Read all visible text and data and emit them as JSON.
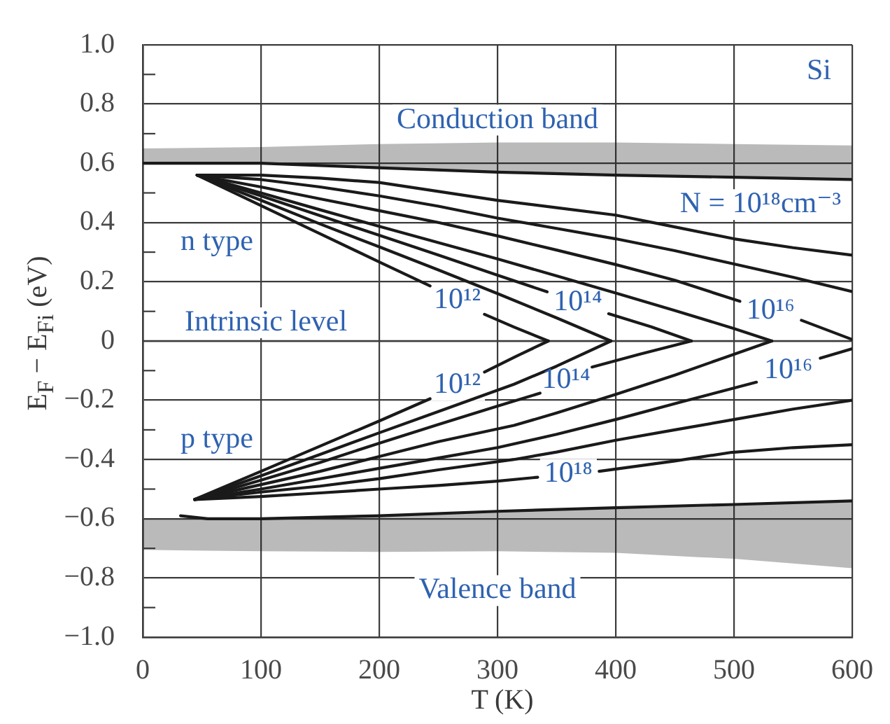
{
  "chart_data": {
    "type": "line",
    "title": "Si",
    "xlabel": "T (K)",
    "ylabel": "E$_{F}$ − E$_{Fi}$ (eV)",
    "xlim": [
      0,
      600
    ],
    "xticks": [
      0,
      100,
      200,
      300,
      400,
      500,
      600
    ],
    "ylim": [
      -1,
      1
    ],
    "yticks": [
      {
        "value": -1,
        "label": "−1.0"
      },
      {
        "value": -0.9,
        "label": null
      },
      {
        "value": -0.8,
        "label": "−0.8"
      },
      {
        "value": -0.7,
        "label": null
      },
      {
        "value": -0.6,
        "label": "−0.6"
      },
      {
        "value": -0.5,
        "label": null
      },
      {
        "value": -0.4,
        "label": "−0.4"
      },
      {
        "value": -0.3,
        "label": null
      },
      {
        "value": -0.2,
        "label": "−0.2"
      },
      {
        "value": -0.1,
        "label": null
      },
      0,
      {
        "value": 0.1,
        "label": null
      },
      0.2,
      {
        "value": 0.3,
        "label": null
      },
      0.4,
      {
        "value": 0.5,
        "label": null
      },
      0.6,
      {
        "value": 0.7,
        "label": null
      },
      0.8,
      {
        "value": 0.9,
        "label": null
      },
      {
        "value": 1,
        "label": "1.0"
      }
    ],
    "grid": true,
    "ref_lines": [
      {
        "axis": "y",
        "value": 0,
        "label": "Intrinsic level"
      }
    ],
    "series": [
      {
        "name": "Conduction band",
        "color": "#1a1a1a",
        "x": [
          0,
          100,
          200,
          300,
          400,
          500,
          600
        ],
        "values": [
          0.6,
          0.6,
          0.585,
          0.57,
          0.56,
          0.553,
          0.545
        ],
        "lower": [
          0.6,
          0.6,
          0.585,
          0.57,
          0.56,
          0.553,
          0.545
        ],
        "upper": [
          0.65,
          0.655,
          0.665,
          0.67,
          0.67,
          0.665,
          0.66
        ]
      },
      {
        "name": "Valence band",
        "color": "#1a1a1a",
        "x": [
          0,
          32,
          55,
          100,
          200,
          300,
          400,
          470,
          500,
          600
        ],
        "values": [
          null,
          -0.59,
          -0.6,
          -0.6,
          -0.59,
          -0.575,
          -0.563,
          -0.555,
          -0.552,
          -0.54
        ],
        "lower": [
          -0.705,
          -0.707,
          -0.708,
          -0.71,
          -0.712,
          -0.71,
          -0.715,
          -0.73,
          -0.735,
          -0.767
        ],
        "upper": [
          -0.6,
          -0.6,
          -0.6,
          -0.6,
          -0.59,
          -0.575,
          -0.563,
          -0.555,
          -0.552,
          -0.54
        ]
      },
      {
        "name": "10¹²",
        "color": "#1a1a1a",
        "x": [
          46,
          100,
          150,
          200,
          243,
          266,
          289,
          314,
          343
        ],
        "values": [
          0.56,
          0.457,
          0.362,
          0.267,
          0.186,
          null,
          0.09,
          0.047,
          0
        ]
      },
      {
        "color": "#1a1a1a",
        "x": [
          46,
          100,
          150,
          200,
          250,
          300,
          350,
          396
        ],
        "values": [
          0.56,
          0.475,
          0.395,
          0.318,
          0.24,
          0.16,
          0.078,
          0
        ]
      },
      {
        "name": "10¹⁴",
        "color": "#1a1a1a",
        "x": [
          46,
          100,
          150,
          200,
          250,
          300,
          342,
          363,
          394,
          430,
          464
        ],
        "values": [
          0.56,
          0.49,
          0.423,
          0.357,
          0.29,
          0.222,
          0.166,
          null,
          0.092,
          0.048,
          0
        ]
      },
      {
        "color": "#1a1a1a",
        "x": [
          46,
          100,
          150,
          200,
          250,
          300,
          350,
          400,
          450,
          500,
          532
        ],
        "values": [
          0.56,
          0.5,
          0.443,
          0.387,
          0.332,
          0.277,
          0.22,
          0.162,
          0.103,
          0.042,
          0
        ]
      },
      {
        "name": "10¹⁶",
        "color": "#1a1a1a",
        "x": [
          46,
          100,
          150,
          200,
          250,
          300,
          350,
          400,
          450,
          505,
          531,
          557,
          600
        ],
        "values": [
          0.56,
          0.52,
          0.48,
          0.44,
          0.4,
          0.355,
          0.307,
          0.258,
          0.205,
          0.134,
          null,
          0.07,
          0.005
        ]
      },
      {
        "color": "#1a1a1a",
        "x": [
          46,
          100,
          150,
          200,
          250,
          300,
          350,
          400,
          450,
          500,
          550,
          600
        ],
        "values": [
          0.56,
          0.545,
          0.52,
          0.49,
          0.455,
          0.415,
          0.38,
          0.345,
          0.305,
          0.26,
          0.215,
          0.167
        ]
      },
      {
        "name": "N = 10¹⁸cm⁻³",
        "color": "#1a1a1a",
        "x": [
          46,
          100,
          150,
          200,
          250,
          300,
          350,
          400,
          450,
          500,
          550,
          600
        ],
        "values": [
          0.56,
          0.56,
          0.55,
          0.535,
          0.505,
          0.475,
          0.45,
          0.425,
          0.385,
          0.345,
          0.315,
          0.29
        ]
      },
      {
        "name": "10¹²",
        "color": "#1a1a1a",
        "x": [
          44,
          100,
          150,
          200,
          243,
          266,
          289,
          314,
          343
        ],
        "values": [
          -0.535,
          -0.44,
          -0.355,
          -0.27,
          -0.195,
          null,
          -0.105,
          -0.055,
          0
        ]
      },
      {
        "color": "#1a1a1a",
        "x": [
          44,
          100,
          150,
          200,
          250,
          314,
          350,
          396
        ],
        "values": [
          -0.535,
          -0.455,
          -0.383,
          -0.31,
          -0.238,
          -0.146,
          -0.085,
          0
        ]
      },
      {
        "name": "10¹⁴",
        "color": "#1a1a1a",
        "x": [
          44,
          100,
          150,
          200,
          250,
          300,
          336,
          358,
          380,
          420,
          464
        ],
        "values": [
          -0.535,
          -0.47,
          -0.41,
          -0.345,
          -0.282,
          -0.22,
          -0.176,
          null,
          -0.088,
          -0.045,
          0
        ]
      },
      {
        "color": "#1a1a1a",
        "x": [
          44,
          100,
          150,
          200,
          250,
          314,
          350,
          400,
          450,
          500,
          532
        ],
        "values": [
          -0.535,
          -0.485,
          -0.44,
          -0.39,
          -0.34,
          -0.285,
          -0.243,
          -0.18,
          -0.115,
          -0.045,
          0
        ]
      },
      {
        "name": "10¹⁶",
        "color": "#1a1a1a",
        "x": [
          44,
          100,
          150,
          200,
          250,
          300,
          350,
          400,
          456,
          519,
          546,
          573,
          600
        ],
        "values": [
          -0.535,
          -0.5,
          -0.465,
          -0.43,
          -0.395,
          -0.36,
          -0.315,
          -0.265,
          -0.205,
          -0.139,
          null,
          -0.058,
          -0.026
        ]
      },
      {
        "color": "#1a1a1a",
        "x": [
          44,
          100,
          150,
          200,
          250,
          314,
          350,
          400,
          450,
          500,
          550,
          600
        ],
        "values": [
          -0.535,
          -0.51,
          -0.49,
          -0.465,
          -0.435,
          -0.4,
          -0.375,
          -0.335,
          -0.3,
          -0.265,
          -0.23,
          -0.2
        ]
      },
      {
        "name": "10¹⁸",
        "color": "#1a1a1a",
        "x": [
          44,
          100,
          150,
          200,
          250,
          300,
          334,
          360,
          386,
          450,
          498,
          550,
          600
        ],
        "values": [
          -0.535,
          -0.525,
          -0.513,
          -0.5,
          -0.488,
          -0.473,
          -0.46,
          null,
          -0.44,
          -0.405,
          -0.376,
          -0.36,
          -0.35
        ]
      }
    ],
    "annotations": [
      "n type",
      "p type"
    ]
  }
}
